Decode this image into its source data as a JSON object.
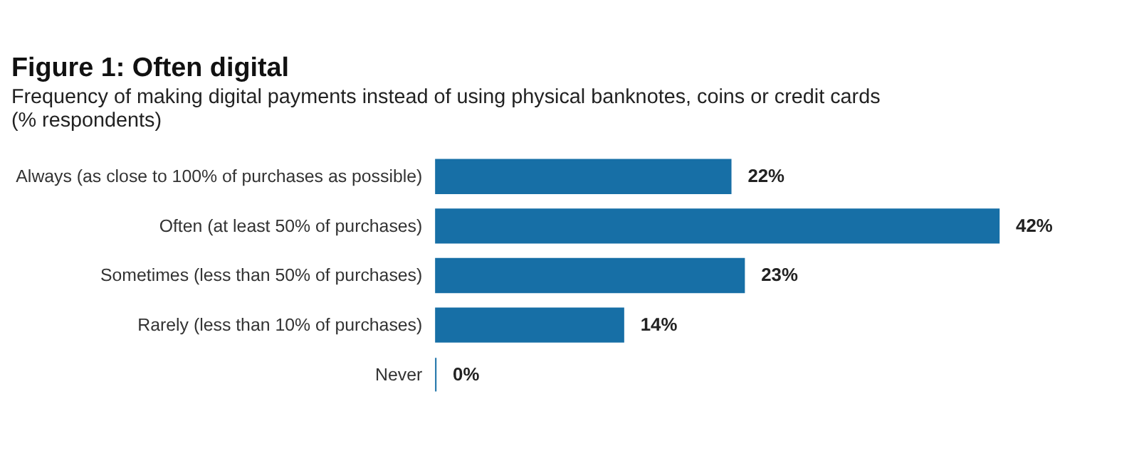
{
  "chart_data": {
    "type": "bar",
    "orientation": "horizontal",
    "title": "Figure 1: Often digital",
    "subtitle": "Frequency of making digital payments instead of using physical banknotes, coins or credit cards",
    "annotations": [
      "(% respondents)"
    ],
    "categories": [
      "Always (as close to 100% of purchases as possible)",
      "Often (at least 50% of purchases)",
      "Sometimes (less than 50% of purchases)",
      "Rarely (less than 10% of purchases)",
      "Never"
    ],
    "values": [
      22,
      42,
      23,
      14,
      0
    ],
    "value_labels": [
      "22%",
      "42%",
      "23%",
      "14%",
      "0%"
    ],
    "color": "#176fa6",
    "tick_labels": "y"
  }
}
